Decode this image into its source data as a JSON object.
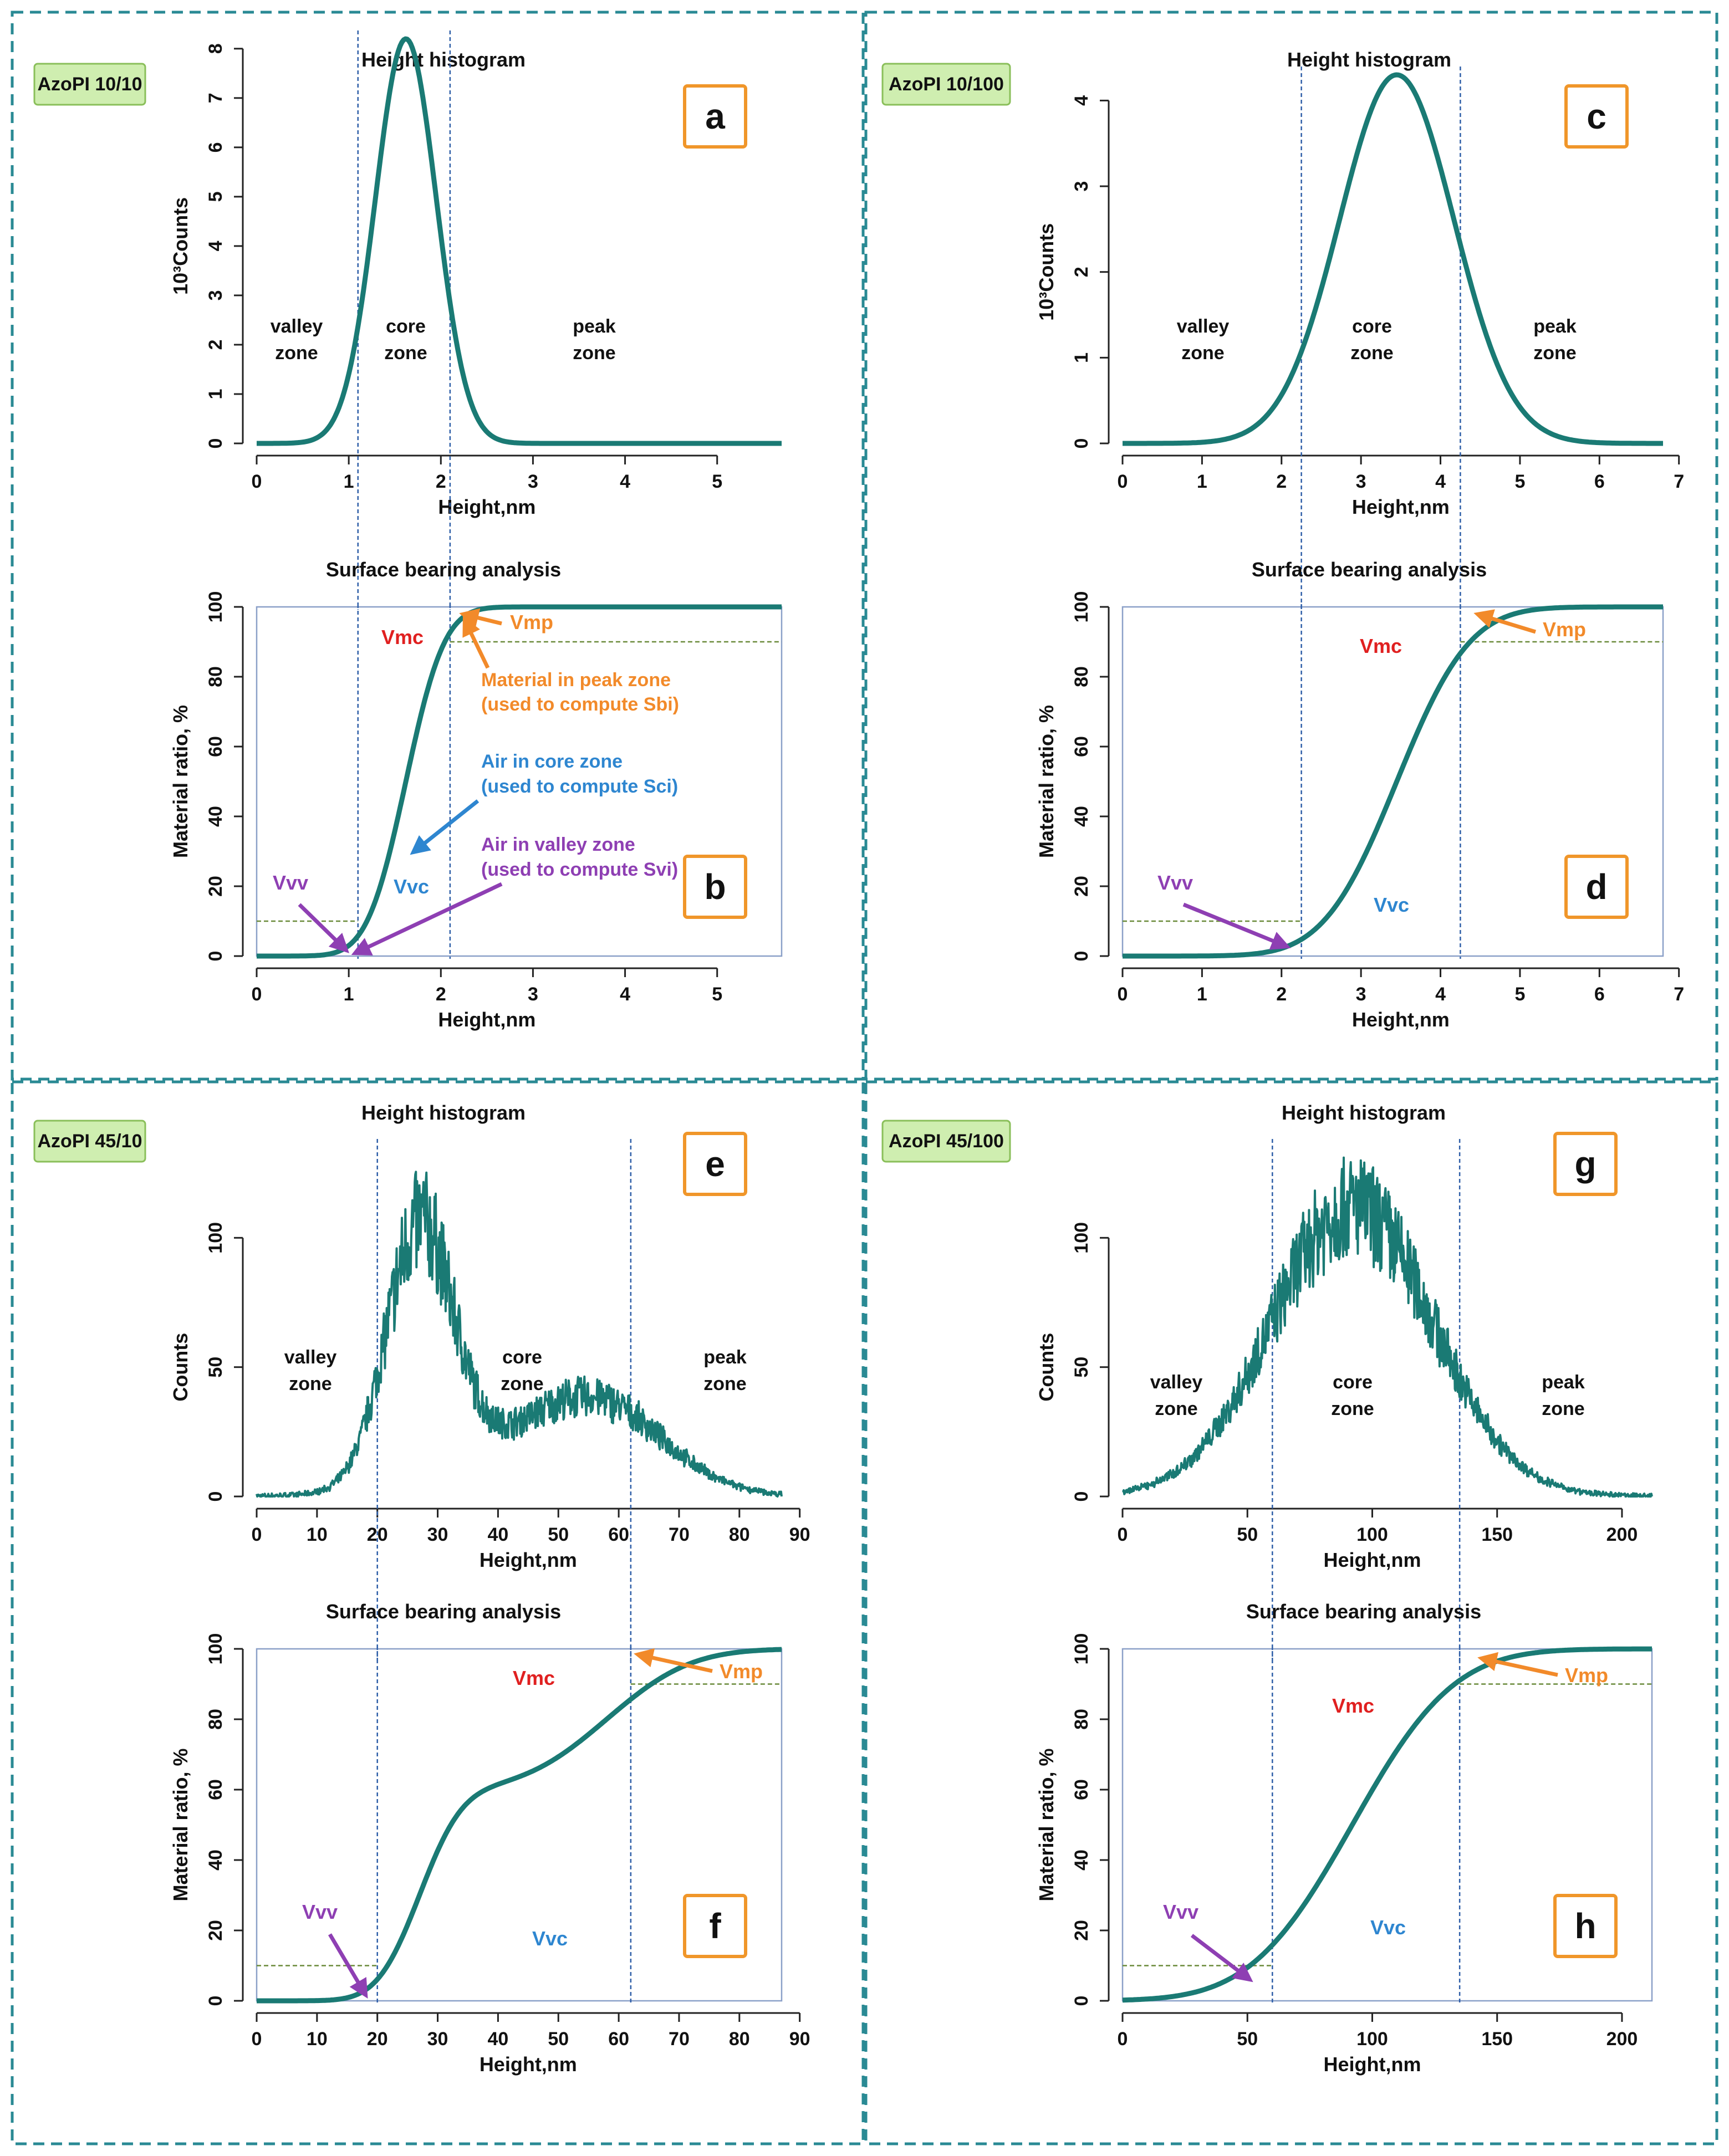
{
  "colors": {
    "curve": "#1a7a74",
    "frame_dash": "#2a8a94",
    "zone_line": "#2f5fa8",
    "box_border": "#8ba0c8",
    "tag_fill": "#cfeeb0",
    "tag_border": "#8abf5a",
    "letter_border": "#f0962a",
    "vmp": "#f28a2a",
    "vmc": "#e02020",
    "vvv": "#8e3fb3",
    "vvc": "#2e86d0",
    "ref_dash": "#6a8a3a"
  },
  "histogram_title": "Height histogram",
  "bearing_title": "Surface bearing analysis",
  "xlabel": "Height,nm",
  "ylabel_bearing": "Material ratio, %",
  "zone_labels": {
    "valley_1": "valley",
    "valley_2": "zone",
    "core_1": "core",
    "core_2": "zone",
    "peak_1": "peak",
    "peak_2": "zone"
  },
  "volume_labels": {
    "vmp": "Vmp",
    "vmc": "Vmc",
    "vvv": "Vvv",
    "vvc": "Vvc"
  },
  "annotations": {
    "peak_1": "Material in peak zone",
    "peak_2": "(used to compute Sbi)",
    "core_1": "Air in core zone",
    "core_2": "(used to compute Sci)",
    "valley_1": "Air in valley zone",
    "valley_2": "(used to compute Svi)"
  },
  "panels": [
    {
      "sample": "AzoPI 10/10",
      "hist_letter": "a",
      "bear_letter": "b"
    },
    {
      "sample": "AzoPI 10/100",
      "hist_letter": "c",
      "bear_letter": "d"
    },
    {
      "sample": "AzoPI 45/10",
      "hist_letter": "e",
      "bear_letter": "f"
    },
    {
      "sample": "AzoPI 45/100",
      "hist_letter": "g",
      "bear_letter": "h"
    }
  ],
  "chart_data": [
    {
      "id": "a",
      "type": "line",
      "title": "Height histogram",
      "xlabel": "Height,nm",
      "ylabel": "10³Counts",
      "xlim": [
        0,
        5.7
      ],
      "ylim": [
        0,
        8.2
      ],
      "xticks": [
        0,
        1,
        2,
        3,
        4,
        5
      ],
      "yticks": [
        0,
        1,
        2,
        3,
        4,
        5,
        6,
        7,
        8
      ],
      "zone_bounds": [
        1.1,
        2.1
      ],
      "series": [
        {
          "name": "histogram",
          "kind": "gauss",
          "peaks": [
            {
              "mu": 1.62,
              "sigma": 0.33,
              "amp": 8.2
            }
          ]
        }
      ]
    },
    {
      "id": "b",
      "type": "line",
      "title": "Surface bearing analysis",
      "xlabel": "Height,nm",
      "ylabel": "Material ratio, %",
      "xlim": [
        0,
        5.7
      ],
      "ylim": [
        0,
        100
      ],
      "xticks": [
        0,
        1,
        2,
        3,
        4,
        5
      ],
      "yticks": [
        0,
        20,
        40,
        60,
        80,
        100
      ],
      "zone_bounds": [
        1.1,
        2.1
      ],
      "ref_levels": [
        10,
        90
      ],
      "series": [
        {
          "name": "material ratio",
          "kind": "cdf",
          "peaks": [
            {
              "mu": 1.62,
              "sigma": 0.33,
              "amp": 1
            }
          ]
        }
      ]
    },
    {
      "id": "c",
      "type": "line",
      "title": "Height histogram",
      "xlabel": "Height,nm",
      "ylabel": "10³Counts",
      "xlim": [
        0,
        6.8
      ],
      "ylim": [
        0,
        4.3
      ],
      "xticks": [
        0,
        1,
        2,
        3,
        4,
        5,
        6,
        7
      ],
      "yticks": [
        0,
        1.0,
        2.0,
        3.0,
        4.0
      ],
      "zone_bounds": [
        2.25,
        4.25
      ],
      "series": [
        {
          "name": "histogram",
          "kind": "gauss",
          "peaks": [
            {
              "mu": 3.45,
              "sigma": 0.72,
              "amp": 4.3
            }
          ]
        }
      ]
    },
    {
      "id": "d",
      "type": "line",
      "title": "Surface bearing analysis",
      "xlabel": "Height,nm",
      "ylabel": "Material ratio, %",
      "xlim": [
        0,
        6.8
      ],
      "ylim": [
        0,
        100
      ],
      "xticks": [
        0,
        1,
        2,
        3,
        4,
        5,
        6,
        7
      ],
      "yticks": [
        0,
        20,
        40,
        60,
        80,
        100
      ],
      "zone_bounds": [
        2.25,
        4.25
      ],
      "ref_levels": [
        10,
        90
      ],
      "series": [
        {
          "name": "material ratio",
          "kind": "cdf",
          "peaks": [
            {
              "mu": 3.45,
              "sigma": 0.72,
              "amp": 1
            }
          ]
        }
      ]
    },
    {
      "id": "e",
      "type": "line",
      "title": "Height histogram",
      "xlabel": "Height,nm",
      "ylabel": "Counts",
      "xlim": [
        0,
        87
      ],
      "ylim": [
        0,
        135
      ],
      "xticks": [
        0,
        10,
        20,
        30,
        40,
        50,
        60,
        70,
        80,
        90
      ],
      "yticks": [
        0,
        50,
        100
      ],
      "zone_bounds": [
        20,
        62
      ],
      "series": [
        {
          "name": "histogram",
          "kind": "gauss",
          "noise": 0.2,
          "peaks": [
            {
              "mu": 27,
              "sigma": 5.5,
              "amp": 98
            },
            {
              "mu": 57,
              "sigma": 11,
              "amp": 30
            },
            {
              "mu": 42,
              "sigma": 14,
              "amp": 14
            }
          ]
        }
      ]
    },
    {
      "id": "f",
      "type": "line",
      "title": "Surface bearing analysis",
      "xlabel": "Height,nm",
      "ylabel": "Material ratio, %",
      "xlim": [
        0,
        87
      ],
      "ylim": [
        0,
        100
      ],
      "xticks": [
        0,
        10,
        20,
        30,
        40,
        50,
        60,
        70,
        80,
        90
      ],
      "yticks": [
        0,
        20,
        40,
        60,
        80,
        100
      ],
      "zone_bounds": [
        20,
        62
      ],
      "ref_levels": [
        10,
        90
      ],
      "series": [
        {
          "name": "material ratio",
          "kind": "cdf",
          "peaks": [
            {
              "mu": 27,
              "sigma": 5.5,
              "amp": 0.6
            },
            {
              "mu": 58,
              "sigma": 11,
              "amp": 0.4
            }
          ]
        }
      ]
    },
    {
      "id": "g",
      "type": "line",
      "title": "Height histogram",
      "xlabel": "Height,nm",
      "ylabel": "Counts",
      "xlim": [
        0,
        212
      ],
      "ylim": [
        0,
        135
      ],
      "xticks": [
        0,
        50,
        100,
        150,
        200
      ],
      "yticks": [
        0,
        50,
        100
      ],
      "zone_bounds": [
        60,
        135
      ],
      "series": [
        {
          "name": "histogram",
          "kind": "gauss",
          "noise": 0.18,
          "peaks": [
            {
              "mu": 92,
              "sigma": 32,
              "amp": 112
            }
          ]
        }
      ]
    },
    {
      "id": "h",
      "type": "line",
      "title": "Surface bearing analysis",
      "xlabel": "Height,nm",
      "ylabel": "Material ratio, %",
      "xlim": [
        0,
        212
      ],
      "ylim": [
        0,
        100
      ],
      "xticks": [
        0,
        50,
        100,
        150,
        200
      ],
      "yticks": [
        0,
        20,
        40,
        60,
        80,
        100
      ],
      "zone_bounds": [
        60,
        135
      ],
      "ref_levels": [
        10,
        90
      ],
      "series": [
        {
          "name": "material ratio",
          "kind": "cdf",
          "peaks": [
            {
              "mu": 92,
              "sigma": 32,
              "amp": 1
            }
          ]
        }
      ]
    }
  ]
}
